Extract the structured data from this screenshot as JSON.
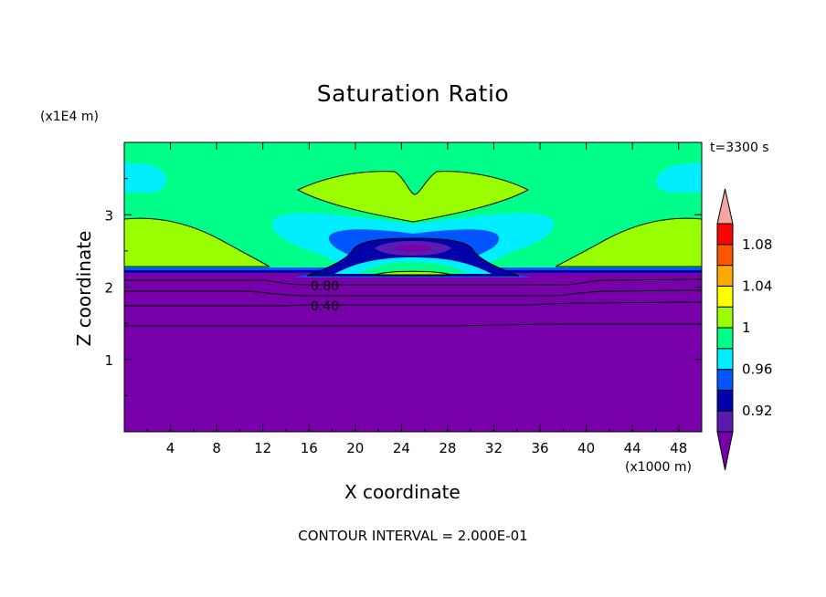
{
  "chart_data": {
    "type": "heatmap",
    "title": "Saturation Ratio",
    "xlabel": "X coordinate",
    "ylabel": "Z coordinate",
    "x_unit_label": "(x1000 m)",
    "z_unit_label": "(x1E4 m)",
    "time_label": "t=3300 s",
    "footer": "CONTOUR INTERVAL = 2.000E-01",
    "xlim": [
      0,
      50
    ],
    "ylim": [
      0,
      4
    ],
    "x_ticks": [
      "4",
      "8",
      "12",
      "16",
      "20",
      "24",
      "28",
      "32",
      "36",
      "40",
      "44",
      "48"
    ],
    "y_ticks": [
      "1",
      "2",
      "3"
    ],
    "colorbar": {
      "levels": [
        0.9,
        0.92,
        0.94,
        0.96,
        0.98,
        1.0,
        1.02,
        1.04,
        1.06,
        1.08,
        1.1
      ],
      "tick_labels": [
        "0.92",
        "0.96",
        "1",
        "1.04",
        "1.08"
      ],
      "colors": [
        "#7700aa",
        "#5a1cb0",
        "#0000aa",
        "#0055ff",
        "#00eeff",
        "#00ff88",
        "#99ff00",
        "#ffff00",
        "#ffaa00",
        "#ff5500",
        "#ff0000",
        "#f4a6a0"
      ]
    },
    "contour_labels": [
      "0.80",
      "0.40"
    ]
  },
  "colors": {
    "background_green": "#00ff88",
    "lower_purple": "#7700aa",
    "light_green": "#99ff00",
    "cyan": "#00eeff",
    "blue": "#0055ff",
    "dark_blue": "#0000aa"
  }
}
